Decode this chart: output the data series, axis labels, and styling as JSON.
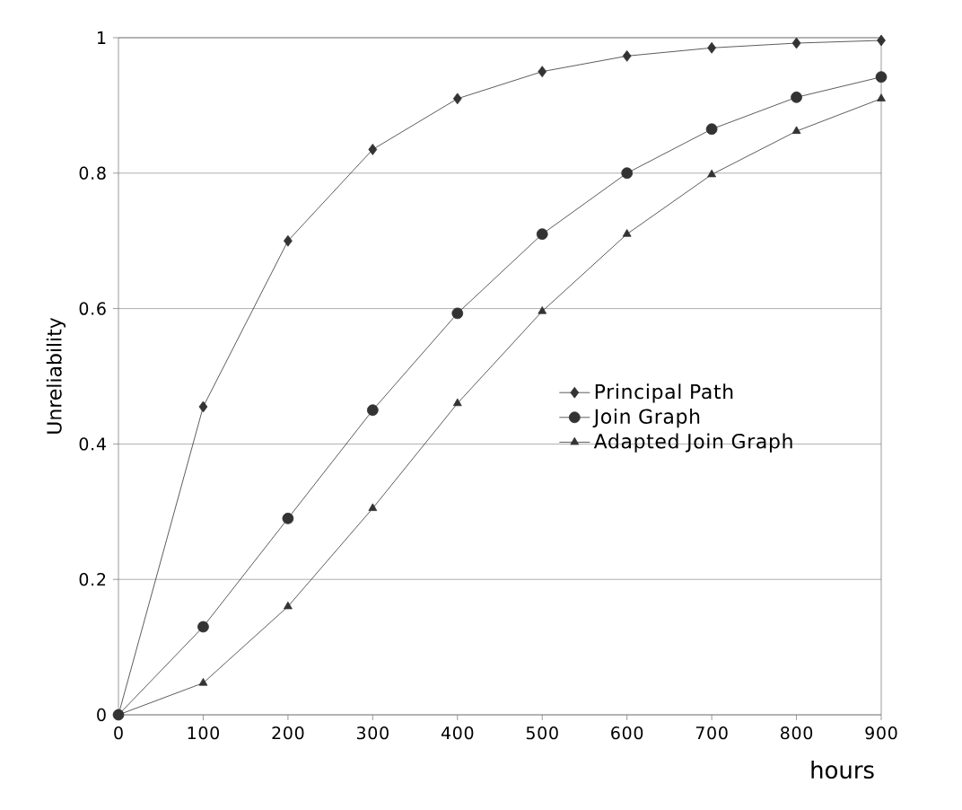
{
  "chart_data": {
    "type": "line",
    "xlabel": "hours",
    "ylabel": "Unreliability",
    "x": [
      0,
      100,
      200,
      300,
      400,
      500,
      600,
      700,
      800,
      900
    ],
    "series": [
      {
        "name": "Principal Path",
        "color": "#333333",
        "marker": "diamond",
        "values": [
          0,
          0.455,
          0.7,
          0.835,
          0.91,
          0.95,
          0.973,
          0.985,
          0.992,
          0.996
        ]
      },
      {
        "name": "Join Graph",
        "color": "#333333",
        "marker": "circle",
        "values": [
          0,
          0.13,
          0.29,
          0.45,
          0.593,
          0.71,
          0.8,
          0.865,
          0.912,
          0.942
        ]
      },
      {
        "name": "Adapted Join Graph",
        "color": "#333333",
        "marker": "triangle",
        "values": [
          0,
          0.047,
          0.16,
          0.305,
          0.46,
          0.596,
          0.71,
          0.798,
          0.862,
          0.91
        ]
      }
    ],
    "xlim": [
      0,
      900
    ],
    "xticks": [
      0,
      100,
      200,
      300,
      400,
      500,
      600,
      700,
      800,
      900
    ],
    "ylim": [
      0,
      1
    ],
    "yticks": [
      0,
      0.2,
      0.4,
      0.6,
      0.8,
      1
    ],
    "grid": "y",
    "legend": "right",
    "line_style": "solid"
  }
}
